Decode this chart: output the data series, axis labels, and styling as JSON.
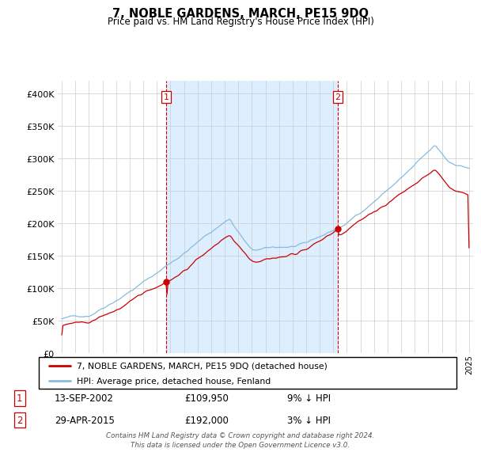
{
  "title": "7, NOBLE GARDENS, MARCH, PE15 9DQ",
  "subtitle": "Price paid vs. HM Land Registry's House Price Index (HPI)",
  "legend_line1": "7, NOBLE GARDENS, MARCH, PE15 9DQ (detached house)",
  "legend_line2": "HPI: Average price, detached house, Fenland",
  "annotation1_label": "1",
  "annotation1_date": "13-SEP-2002",
  "annotation1_price": "£109,950",
  "annotation1_hpi": "9% ↓ HPI",
  "annotation1_year": 2002.71,
  "annotation1_value": 109950,
  "annotation2_label": "2",
  "annotation2_date": "29-APR-2015",
  "annotation2_price": "£192,000",
  "annotation2_hpi": "3% ↓ HPI",
  "annotation2_year": 2015.33,
  "annotation2_value": 192000,
  "footer": "Contains HM Land Registry data © Crown copyright and database right 2024.\nThis data is licensed under the Open Government Licence v3.0.",
  "ylim": [
    0,
    420000
  ],
  "xlim_start": 1994.7,
  "xlim_end": 2025.3,
  "red_color": "#cc0000",
  "blue_color": "#88bbdd",
  "shade_color": "#ddeeff",
  "grid_color": "#cccccc",
  "vline_color": "#cc0000",
  "background_color": "#ffffff"
}
